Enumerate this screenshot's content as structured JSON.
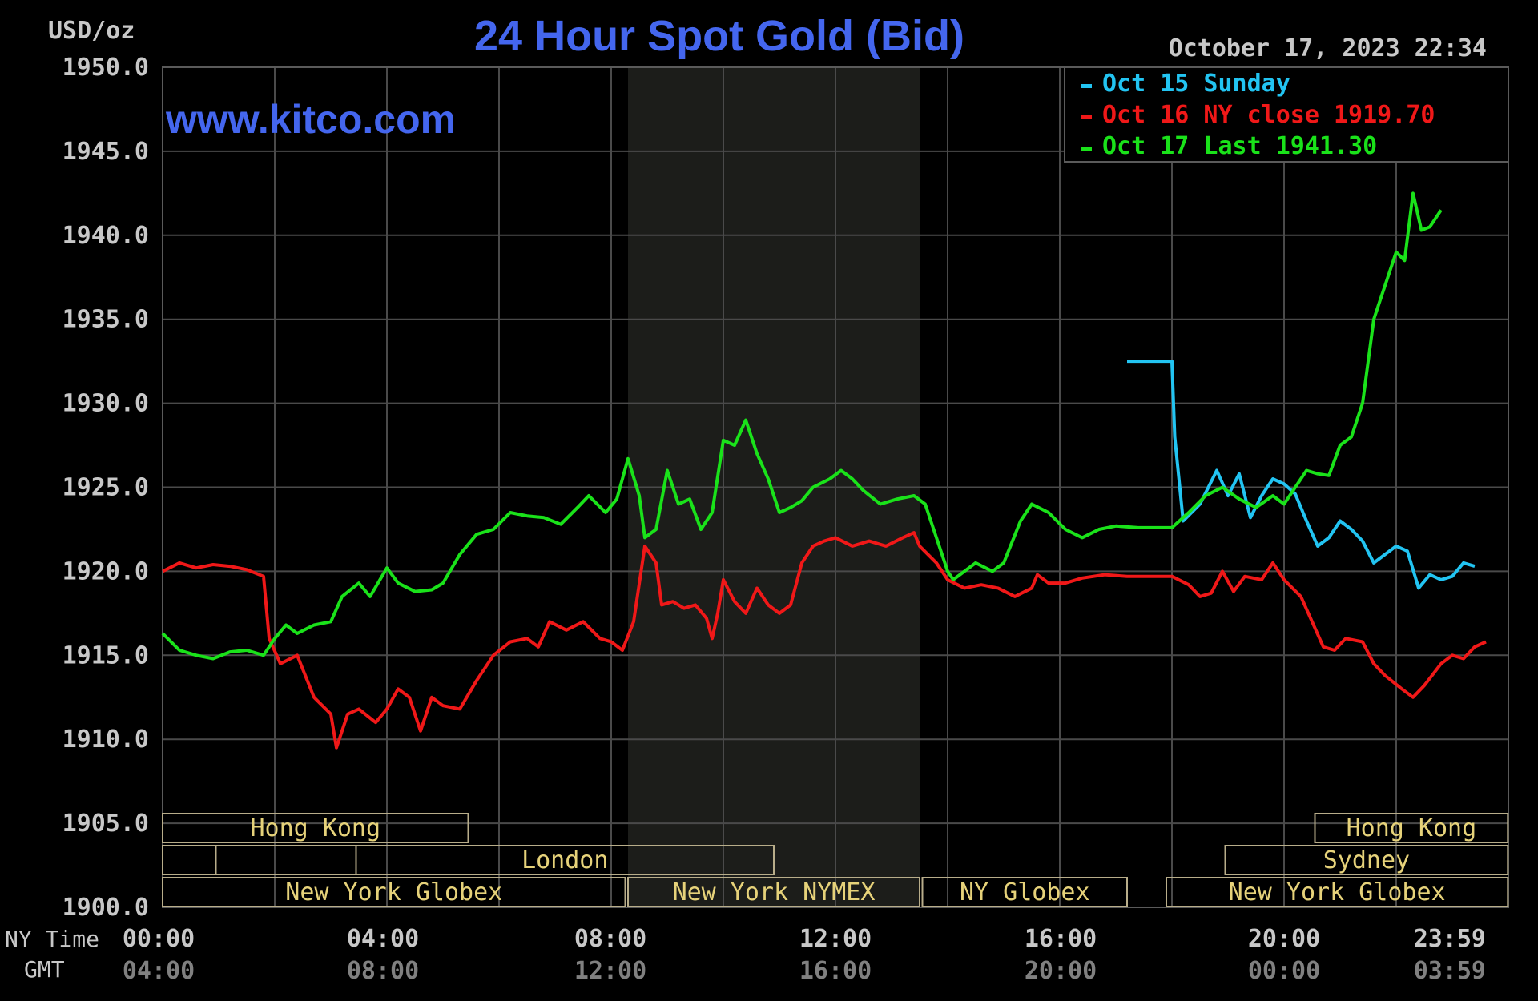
{
  "chart_data": {
    "type": "line",
    "title": "24 Hour Spot Gold (Bid)",
    "ylabel": "USD/oz",
    "watermark": "www.kitco.com",
    "timestamp": "October 17, 2023 22:34",
    "ylim": [
      1900,
      1950
    ],
    "y_ticks": [
      "1950.0",
      "1945.0",
      "1940.0",
      "1935.0",
      "1930.0",
      "1925.0",
      "1920.0",
      "1915.0",
      "1910.0",
      "1905.0",
      "1900.0"
    ],
    "x_row_labels": {
      "ny": "NY Time",
      "gmt": "GMT"
    },
    "x_ticks_ny": [
      "00:00",
      "04:00",
      "08:00",
      "12:00",
      "16:00",
      "20:00",
      "23:59"
    ],
    "x_ticks_gmt": [
      "04:00",
      "08:00",
      "12:00",
      "16:00",
      "20:00",
      "00:00",
      "03:59"
    ],
    "grid": true,
    "legend_position": "top-right",
    "colors": {
      "background": "#000000",
      "grid": "#4a4a4a",
      "title": "#4466ee",
      "axis_text": "#c8c8c8",
      "gmt_text": "#808080",
      "session_text": "#e6d27a",
      "session_box": "#b8ad8a",
      "shade": "#1c1d1a"
    },
    "shaded_hours": [
      8.3,
      13.5
    ],
    "series": [
      {
        "name": "Oct 15 Sunday",
        "legend_label": "Oct 15 Sunday",
        "color": "#22c4f2",
        "points": [
          [
            17.2,
            1932.5
          ],
          [
            18.0,
            1932.5
          ],
          [
            18.05,
            1928.0
          ],
          [
            18.2,
            1923.0
          ],
          [
            18.5,
            1924.0
          ],
          [
            18.8,
            1926.0
          ],
          [
            19.0,
            1924.5
          ],
          [
            19.2,
            1925.8
          ],
          [
            19.4,
            1923.2
          ],
          [
            19.6,
            1924.5
          ],
          [
            19.8,
            1925.5
          ],
          [
            20.0,
            1925.2
          ],
          [
            20.2,
            1924.6
          ],
          [
            20.4,
            1923.0
          ],
          [
            20.6,
            1921.5
          ],
          [
            20.8,
            1922.0
          ],
          [
            21.0,
            1923.0
          ],
          [
            21.2,
            1922.5
          ],
          [
            21.4,
            1921.8
          ],
          [
            21.6,
            1920.5
          ],
          [
            21.8,
            1921.0
          ],
          [
            22.0,
            1921.5
          ],
          [
            22.2,
            1921.2
          ],
          [
            22.4,
            1919.0
          ],
          [
            22.6,
            1919.8
          ],
          [
            22.8,
            1919.5
          ],
          [
            23.0,
            1919.7
          ],
          [
            23.2,
            1920.5
          ],
          [
            23.4,
            1920.3
          ]
        ]
      },
      {
        "name": "Oct 16 NY close",
        "legend_label": "Oct 16 NY close 1919.70",
        "color": "#f01818",
        "points": [
          [
            0.0,
            1920.0
          ],
          [
            0.3,
            1920.5
          ],
          [
            0.6,
            1920.2
          ],
          [
            0.9,
            1920.4
          ],
          [
            1.2,
            1920.3
          ],
          [
            1.5,
            1920.1
          ],
          [
            1.8,
            1919.7
          ],
          [
            1.9,
            1916.0
          ],
          [
            2.1,
            1914.5
          ],
          [
            2.4,
            1915.0
          ],
          [
            2.7,
            1912.5
          ],
          [
            3.0,
            1911.5
          ],
          [
            3.1,
            1909.5
          ],
          [
            3.3,
            1911.5
          ],
          [
            3.5,
            1911.8
          ],
          [
            3.8,
            1911.0
          ],
          [
            4.0,
            1911.8
          ],
          [
            4.2,
            1913.0
          ],
          [
            4.4,
            1912.5
          ],
          [
            4.6,
            1910.5
          ],
          [
            4.8,
            1912.5
          ],
          [
            5.0,
            1912.0
          ],
          [
            5.3,
            1911.8
          ],
          [
            5.6,
            1913.5
          ],
          [
            5.9,
            1915.0
          ],
          [
            6.2,
            1915.8
          ],
          [
            6.5,
            1916.0
          ],
          [
            6.7,
            1915.5
          ],
          [
            6.9,
            1917.0
          ],
          [
            7.2,
            1916.5
          ],
          [
            7.5,
            1917.0
          ],
          [
            7.8,
            1916.0
          ],
          [
            8.0,
            1915.8
          ],
          [
            8.2,
            1915.3
          ],
          [
            8.4,
            1917.0
          ],
          [
            8.6,
            1921.5
          ],
          [
            8.7,
            1921.0
          ],
          [
            8.8,
            1920.5
          ],
          [
            8.9,
            1918.0
          ],
          [
            9.1,
            1918.2
          ],
          [
            9.3,
            1917.8
          ],
          [
            9.5,
            1918.0
          ],
          [
            9.7,
            1917.2
          ],
          [
            9.8,
            1916.0
          ],
          [
            9.9,
            1917.5
          ],
          [
            10.0,
            1919.5
          ],
          [
            10.2,
            1918.2
          ],
          [
            10.4,
            1917.5
          ],
          [
            10.6,
            1919.0
          ],
          [
            10.8,
            1918.0
          ],
          [
            11.0,
            1917.5
          ],
          [
            11.2,
            1918.0
          ],
          [
            11.4,
            1920.5
          ],
          [
            11.6,
            1921.5
          ],
          [
            11.8,
            1921.8
          ],
          [
            12.0,
            1922.0
          ],
          [
            12.3,
            1921.5
          ],
          [
            12.6,
            1921.8
          ],
          [
            12.9,
            1921.5
          ],
          [
            13.2,
            1922.0
          ],
          [
            13.4,
            1922.3
          ],
          [
            13.5,
            1921.5
          ],
          [
            13.8,
            1920.5
          ],
          [
            14.0,
            1919.5
          ],
          [
            14.3,
            1919.0
          ],
          [
            14.6,
            1919.2
          ],
          [
            14.9,
            1919.0
          ],
          [
            15.2,
            1918.5
          ],
          [
            15.5,
            1919.0
          ],
          [
            15.6,
            1919.8
          ],
          [
            15.8,
            1919.3
          ],
          [
            16.1,
            1919.3
          ],
          [
            16.4,
            1919.6
          ],
          [
            16.8,
            1919.8
          ],
          [
            17.2,
            1919.7
          ],
          [
            17.6,
            1919.7
          ],
          [
            18.0,
            1919.7
          ],
          [
            18.3,
            1919.2
          ],
          [
            18.5,
            1918.5
          ],
          [
            18.7,
            1918.7
          ],
          [
            18.9,
            1920.0
          ],
          [
            19.1,
            1918.8
          ],
          [
            19.3,
            1919.7
          ],
          [
            19.6,
            1919.5
          ],
          [
            19.8,
            1920.5
          ],
          [
            20.0,
            1919.5
          ],
          [
            20.3,
            1918.5
          ],
          [
            20.5,
            1917.0
          ],
          [
            20.7,
            1915.5
          ],
          [
            20.9,
            1915.3
          ],
          [
            21.1,
            1916.0
          ],
          [
            21.4,
            1915.8
          ],
          [
            21.6,
            1914.5
          ],
          [
            21.8,
            1913.8
          ],
          [
            22.1,
            1913.0
          ],
          [
            22.3,
            1912.5
          ],
          [
            22.5,
            1913.2
          ],
          [
            22.8,
            1914.5
          ],
          [
            23.0,
            1915.0
          ],
          [
            23.2,
            1914.8
          ],
          [
            23.4,
            1915.5
          ],
          [
            23.6,
            1915.8
          ]
        ]
      },
      {
        "name": "Oct 17 Last",
        "legend_label": "Oct 17 Last 1941.30",
        "color": "#1ae21a",
        "points": [
          [
            0.0,
            1916.3
          ],
          [
            0.3,
            1915.3
          ],
          [
            0.6,
            1915.0
          ],
          [
            0.9,
            1914.8
          ],
          [
            1.2,
            1915.2
          ],
          [
            1.5,
            1915.3
          ],
          [
            1.8,
            1915.0
          ],
          [
            2.0,
            1916.0
          ],
          [
            2.2,
            1916.8
          ],
          [
            2.4,
            1916.3
          ],
          [
            2.7,
            1916.8
          ],
          [
            3.0,
            1917.0
          ],
          [
            3.2,
            1918.5
          ],
          [
            3.5,
            1919.3
          ],
          [
            3.7,
            1918.5
          ],
          [
            4.0,
            1920.2
          ],
          [
            4.2,
            1919.3
          ],
          [
            4.5,
            1918.8
          ],
          [
            4.8,
            1918.9
          ],
          [
            5.0,
            1919.3
          ],
          [
            5.3,
            1921.0
          ],
          [
            5.6,
            1922.2
          ],
          [
            5.9,
            1922.5
          ],
          [
            6.2,
            1923.5
          ],
          [
            6.5,
            1923.3
          ],
          [
            6.8,
            1923.2
          ],
          [
            7.1,
            1922.8
          ],
          [
            7.4,
            1923.8
          ],
          [
            7.6,
            1924.5
          ],
          [
            7.9,
            1923.5
          ],
          [
            8.1,
            1924.3
          ],
          [
            8.3,
            1926.7
          ],
          [
            8.5,
            1924.5
          ],
          [
            8.6,
            1922.0
          ],
          [
            8.8,
            1922.5
          ],
          [
            9.0,
            1926.0
          ],
          [
            9.2,
            1924.0
          ],
          [
            9.4,
            1924.3
          ],
          [
            9.6,
            1922.5
          ],
          [
            9.8,
            1923.5
          ],
          [
            10.0,
            1927.8
          ],
          [
            10.2,
            1927.5
          ],
          [
            10.4,
            1929.0
          ],
          [
            10.6,
            1927.0
          ],
          [
            10.8,
            1925.5
          ],
          [
            11.0,
            1923.5
          ],
          [
            11.2,
            1923.8
          ],
          [
            11.4,
            1924.2
          ],
          [
            11.6,
            1925.0
          ],
          [
            11.9,
            1925.5
          ],
          [
            12.1,
            1926.0
          ],
          [
            12.3,
            1925.5
          ],
          [
            12.5,
            1924.8
          ],
          [
            12.8,
            1924.0
          ],
          [
            13.1,
            1924.3
          ],
          [
            13.4,
            1924.5
          ],
          [
            13.6,
            1924.0
          ],
          [
            13.8,
            1922.0
          ],
          [
            14.0,
            1920.0
          ],
          [
            14.1,
            1919.5
          ],
          [
            14.3,
            1920.0
          ],
          [
            14.5,
            1920.5
          ],
          [
            14.8,
            1920.0
          ],
          [
            15.0,
            1920.5
          ],
          [
            15.3,
            1923.0
          ],
          [
            15.5,
            1924.0
          ],
          [
            15.8,
            1923.5
          ],
          [
            16.1,
            1922.5
          ],
          [
            16.4,
            1922.0
          ],
          [
            16.7,
            1922.5
          ],
          [
            17.0,
            1922.7
          ],
          [
            17.4,
            1922.6
          ],
          [
            17.8,
            1922.6
          ],
          [
            18.0,
            1922.6
          ],
          [
            18.3,
            1923.5
          ],
          [
            18.6,
            1924.5
          ],
          [
            18.9,
            1925.0
          ],
          [
            19.2,
            1924.3
          ],
          [
            19.5,
            1923.8
          ],
          [
            19.8,
            1924.5
          ],
          [
            20.0,
            1924.0
          ],
          [
            20.2,
            1925.0
          ],
          [
            20.4,
            1926.0
          ],
          [
            20.6,
            1925.8
          ],
          [
            20.8,
            1925.7
          ],
          [
            21.0,
            1927.5
          ],
          [
            21.2,
            1928.0
          ],
          [
            21.4,
            1930.0
          ],
          [
            21.6,
            1935.0
          ],
          [
            21.8,
            1937.0
          ],
          [
            22.0,
            1939.0
          ],
          [
            22.15,
            1938.5
          ],
          [
            22.3,
            1942.5
          ],
          [
            22.45,
            1940.3
          ],
          [
            22.6,
            1940.5
          ],
          [
            22.8,
            1941.5
          ]
        ]
      }
    ],
    "sessions": [
      {
        "label": "Hong Kong",
        "row": 0,
        "start": 0.0,
        "end": 5.45
      },
      {
        "label": "Hong Kong",
        "row": 0,
        "start": 20.55,
        "end": 23.99
      },
      {
        "label": "",
        "row": 1,
        "start": 0.0,
        "end": 0.95
      },
      {
        "label": "",
        "row": 1,
        "start": 0.95,
        "end": 3.45
      },
      {
        "label": "London",
        "row": 1,
        "start": 3.45,
        "end": 10.9
      },
      {
        "label": "Sydney",
        "row": 1,
        "start": 18.95,
        "end": 23.99
      },
      {
        "label": "New York Globex",
        "row": 2,
        "start": 0.0,
        "end": 8.25
      },
      {
        "label": "New York NYMEX",
        "row": 2,
        "start": 8.3,
        "end": 13.5
      },
      {
        "label": "NY Globex",
        "row": 2,
        "start": 13.55,
        "end": 17.2
      },
      {
        "label": "New York Globex",
        "row": 2,
        "start": 17.9,
        "end": 23.99
      }
    ]
  }
}
